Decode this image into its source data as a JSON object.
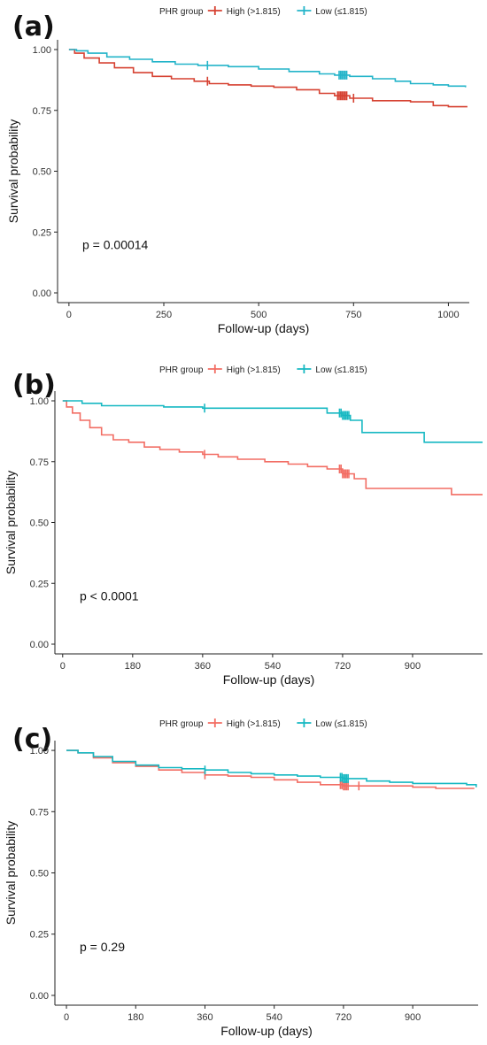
{
  "chart_data": [
    {
      "panel_label": "(a)",
      "type": "line",
      "legend": {
        "title": "PHR group",
        "placement": "top",
        "entries": [
          {
            "name": "High (>1.815)",
            "color": "#d64131"
          },
          {
            "name": "Low (≤1.815)",
            "color": "#23b4c9"
          }
        ]
      },
      "xlabel": "Follow-up (days)",
      "ylabel": "Survival probability",
      "xlim": [
        -30,
        1055
      ],
      "ylim": [
        -0.04,
        1.04
      ],
      "x_ticks": [
        0,
        250,
        500,
        750,
        1000
      ],
      "x_tick_labels": [
        "0",
        "250",
        "500",
        "750",
        "1000"
      ],
      "y_ticks": [
        0,
        0.25,
        0.5,
        0.75,
        1
      ],
      "y_tick_labels": [
        "0.00",
        "0.25",
        "0.50",
        "0.75",
        "1.00"
      ],
      "annotation": "p = 0.00014",
      "series": [
        {
          "name": "High (>1.815)",
          "color": "#d64131",
          "points": [
            [
              0,
              1
            ],
            [
              15,
              0.985
            ],
            [
              40,
              0.965
            ],
            [
              80,
              0.945
            ],
            [
              120,
              0.925
            ],
            [
              170,
              0.905
            ],
            [
              220,
              0.89
            ],
            [
              270,
              0.88
            ],
            [
              330,
              0.87
            ],
            [
              370,
              0.86
            ],
            [
              420,
              0.855
            ],
            [
              480,
              0.85
            ],
            [
              540,
              0.845
            ],
            [
              600,
              0.835
            ],
            [
              660,
              0.82
            ],
            [
              700,
              0.81
            ],
            [
              740,
              0.8
            ],
            [
              800,
              0.79
            ],
            [
              860,
              0.79
            ],
            [
              900,
              0.785
            ],
            [
              960,
              0.77
            ],
            [
              1000,
              0.765
            ],
            [
              1050,
              0.765
            ]
          ],
          "censor_x": [
            365,
            708,
            712,
            716,
            720,
            724,
            728,
            732,
            750
          ]
        },
        {
          "name": "Low (≤1.815)",
          "color": "#23b4c9",
          "points": [
            [
              0,
              1
            ],
            [
              20,
              0.995
            ],
            [
              50,
              0.985
            ],
            [
              100,
              0.97
            ],
            [
              160,
              0.96
            ],
            [
              220,
              0.95
            ],
            [
              280,
              0.94
            ],
            [
              340,
              0.935
            ],
            [
              420,
              0.93
            ],
            [
              500,
              0.92
            ],
            [
              580,
              0.91
            ],
            [
              660,
              0.9
            ],
            [
              700,
              0.895
            ],
            [
              740,
              0.89
            ],
            [
              800,
              0.88
            ],
            [
              860,
              0.87
            ],
            [
              900,
              0.86
            ],
            [
              960,
              0.855
            ],
            [
              1000,
              0.85
            ],
            [
              1045,
              0.845
            ]
          ],
          "censor_x": [
            365,
            712,
            716,
            720,
            724,
            728,
            732
          ]
        }
      ]
    },
    {
      "panel_label": "(b)",
      "type": "line",
      "legend": {
        "title": "PHR group",
        "placement": "top",
        "entries": [
          {
            "name": "High (>1.815)",
            "color": "#f26d63"
          },
          {
            "name": "Low (≤1.815)",
            "color": "#16b8c2"
          }
        ]
      },
      "xlabel": "Follow-up (days)",
      "ylabel": "Survival probability",
      "xlim": [
        -20,
        1080
      ],
      "ylim": [
        -0.04,
        1.04
      ],
      "x_ticks": [
        0,
        180,
        360,
        540,
        720,
        900
      ],
      "x_tick_labels": [
        "0",
        "180",
        "360",
        "540",
        "720",
        "900"
      ],
      "y_ticks": [
        0,
        0.25,
        0.5,
        0.75,
        1
      ],
      "y_tick_labels": [
        "0.00",
        "0.25",
        "0.50",
        "0.75",
        "1.00"
      ],
      "annotation": "p < 0.0001",
      "series": [
        {
          "name": "High (>1.815)",
          "color": "#f26d63",
          "points": [
            [
              0,
              1
            ],
            [
              10,
              0.975
            ],
            [
              25,
              0.95
            ],
            [
              45,
              0.92
            ],
            [
              70,
              0.89
            ],
            [
              100,
              0.86
            ],
            [
              130,
              0.84
            ],
            [
              170,
              0.83
            ],
            [
              210,
              0.81
            ],
            [
              250,
              0.8
            ],
            [
              300,
              0.79
            ],
            [
              360,
              0.78
            ],
            [
              400,
              0.77
            ],
            [
              450,
              0.76
            ],
            [
              520,
              0.75
            ],
            [
              580,
              0.74
            ],
            [
              630,
              0.73
            ],
            [
              680,
              0.72
            ],
            [
              720,
              0.7
            ],
            [
              750,
              0.68
            ],
            [
              780,
              0.64
            ],
            [
              850,
              0.64
            ],
            [
              900,
              0.64
            ],
            [
              990,
              0.64
            ],
            [
              1000,
              0.615
            ],
            [
              1080,
              0.615
            ]
          ],
          "censor_x": [
            365,
            712,
            716,
            720,
            724,
            728,
            732,
            736
          ]
        },
        {
          "name": "Low (≤1.815)",
          "color": "#16b8c2",
          "points": [
            [
              0,
              1
            ],
            [
              50,
              0.99
            ],
            [
              100,
              0.98
            ],
            [
              260,
              0.975
            ],
            [
              360,
              0.97
            ],
            [
              580,
              0.97
            ],
            [
              680,
              0.95
            ],
            [
              720,
              0.94
            ],
            [
              740,
              0.92
            ],
            [
              770,
              0.87
            ],
            [
              850,
              0.87
            ],
            [
              930,
              0.83
            ],
            [
              1080,
              0.83
            ]
          ],
          "censor_x": [
            365,
            712,
            716,
            720,
            724,
            728,
            732,
            736
          ]
        }
      ]
    },
    {
      "panel_label": "(c)",
      "type": "line",
      "legend": {
        "title": "PHR group",
        "placement": "top",
        "entries": [
          {
            "name": "High (>1.815)",
            "color": "#f26d63"
          },
          {
            "name": "Low (≤1.815)",
            "color": "#16b8c2"
          }
        ]
      },
      "xlabel": "Follow-up (days)",
      "ylabel": "Survival probability",
      "xlim": [
        -30,
        1070
      ],
      "ylim": [
        -0.04,
        1.04
      ],
      "x_ticks": [
        0,
        180,
        360,
        540,
        720,
        900
      ],
      "x_tick_labels": [
        "0",
        "180",
        "360",
        "540",
        "720",
        "900"
      ],
      "y_ticks": [
        0,
        0.25,
        0.5,
        0.75,
        1
      ],
      "y_tick_labels": [
        "0.00",
        "0.25",
        "0.50",
        "0.75",
        "1.00"
      ],
      "annotation": "p = 0.29",
      "series": [
        {
          "name": "High (>1.815)",
          "color": "#f26d63",
          "points": [
            [
              0,
              1
            ],
            [
              30,
              0.99
            ],
            [
              70,
              0.97
            ],
            [
              120,
              0.95
            ],
            [
              180,
              0.935
            ],
            [
              240,
              0.92
            ],
            [
              300,
              0.91
            ],
            [
              360,
              0.9
            ],
            [
              420,
              0.895
            ],
            [
              480,
              0.89
            ],
            [
              540,
              0.88
            ],
            [
              600,
              0.87
            ],
            [
              660,
              0.86
            ],
            [
              720,
              0.855
            ],
            [
              800,
              0.855
            ],
            [
              900,
              0.85
            ],
            [
              960,
              0.845
            ],
            [
              1060,
              0.845
            ]
          ],
          "censor_x": [
            360,
            712,
            716,
            720,
            724,
            728,
            732,
            760
          ]
        },
        {
          "name": "Low (≤1.815)",
          "color": "#16b8c2",
          "points": [
            [
              0,
              1
            ],
            [
              30,
              0.99
            ],
            [
              70,
              0.975
            ],
            [
              120,
              0.955
            ],
            [
              180,
              0.94
            ],
            [
              240,
              0.93
            ],
            [
              300,
              0.925
            ],
            [
              360,
              0.92
            ],
            [
              420,
              0.91
            ],
            [
              480,
              0.905
            ],
            [
              540,
              0.9
            ],
            [
              600,
              0.895
            ],
            [
              660,
              0.89
            ],
            [
              720,
              0.885
            ],
            [
              780,
              0.875
            ],
            [
              840,
              0.87
            ],
            [
              900,
              0.865
            ],
            [
              960,
              0.865
            ],
            [
              1040,
              0.86
            ],
            [
              1065,
              0.85
            ]
          ],
          "censor_x": [
            360,
            712,
            716,
            720,
            724,
            728,
            732
          ]
        }
      ]
    }
  ]
}
